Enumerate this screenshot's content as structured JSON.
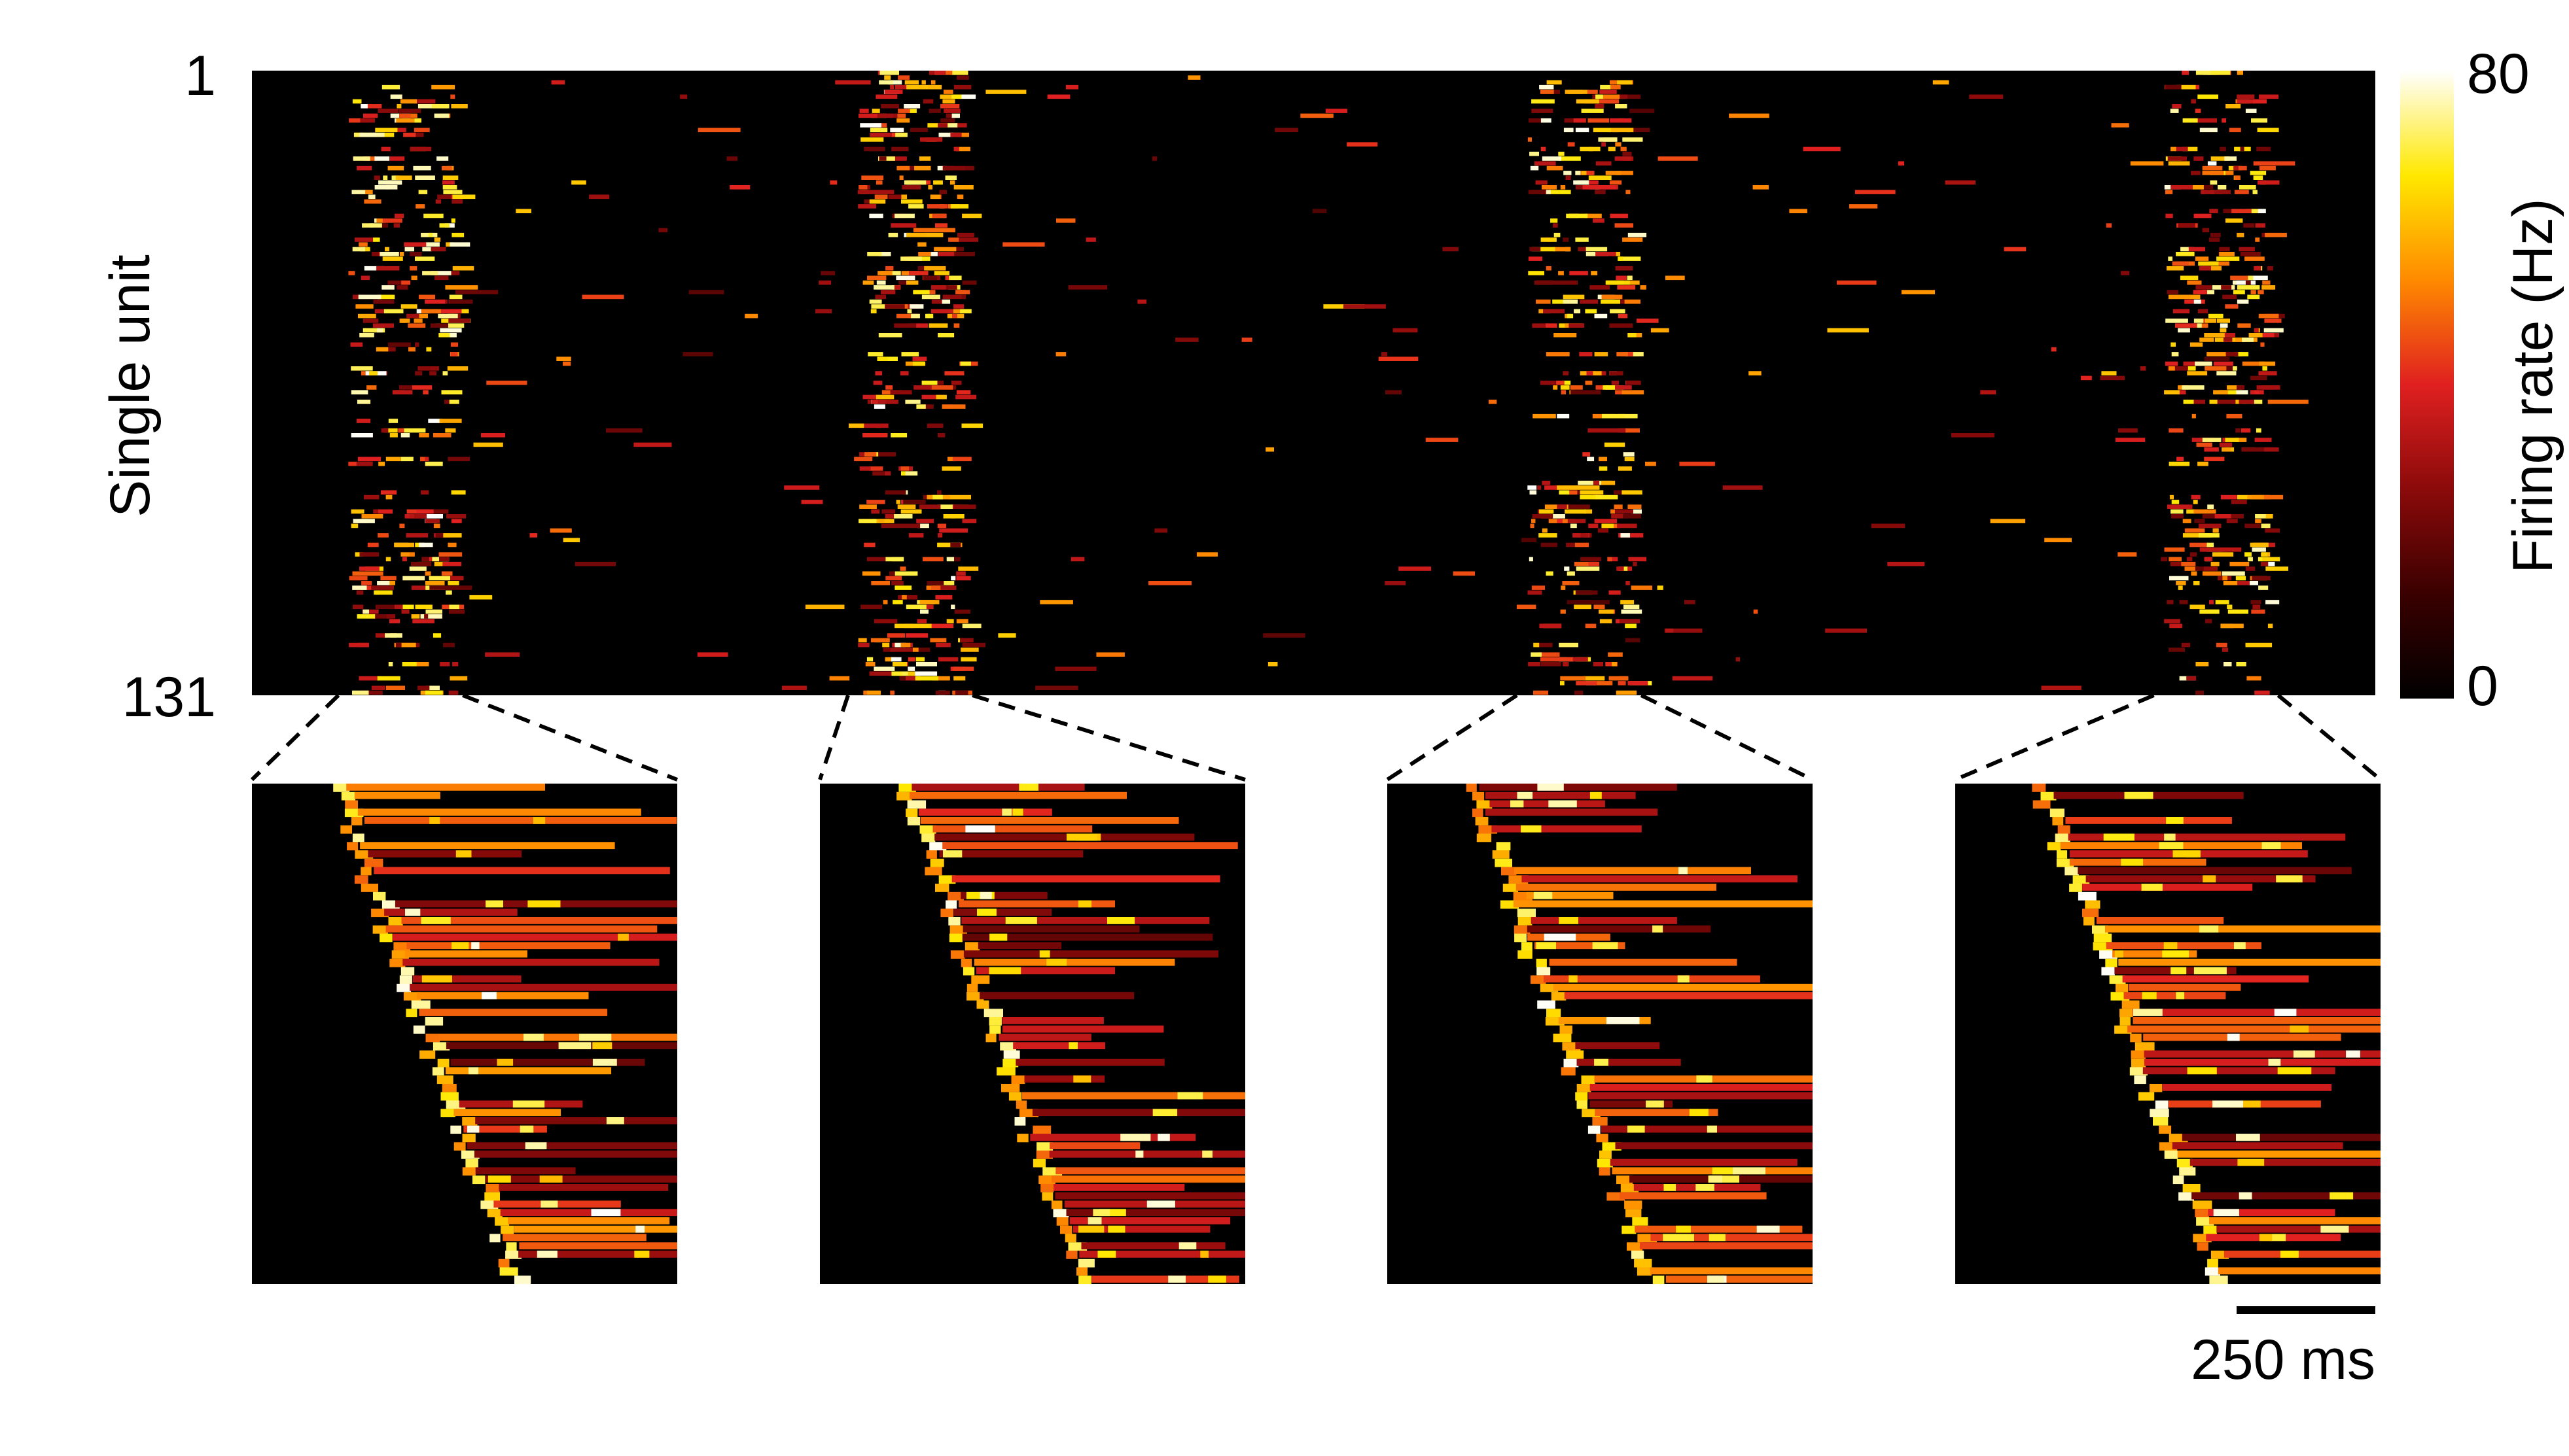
{
  "chart_data": {
    "type": "heatmap",
    "title": "",
    "xlabel": "",
    "ylabel": "Single unit",
    "y_tick_labels": [
      "1",
      "131"
    ],
    "n_units": 131,
    "colorbar": {
      "label": "Firing rate (Hz)",
      "min": 0,
      "max": 80,
      "tick_labels": [
        "80",
        "0"
      ],
      "colormap": [
        "#000000",
        "#3a0000",
        "#8b0a0a",
        "#e02020",
        "#ff8a00",
        "#ffe800",
        "#ffffff"
      ]
    },
    "scale_bar": {
      "label": "250 ms",
      "value": 250,
      "unit": "ms"
    },
    "bursts": [
      {
        "index": 1,
        "center_fraction": 0.07
      },
      {
        "index": 2,
        "center_fraction": 0.31
      },
      {
        "index": 3,
        "center_fraction": 0.625
      },
      {
        "index": 4,
        "center_fraction": 0.925
      }
    ],
    "insets": [
      {
        "name": "Burst 1 zoom",
        "burst_index": 1
      },
      {
        "name": "Burst 2 zoom",
        "burst_index": 2
      },
      {
        "name": "Burst 3 zoom",
        "burst_index": 3
      },
      {
        "name": "Burst 4 zoom",
        "burst_index": 4
      }
    ]
  }
}
